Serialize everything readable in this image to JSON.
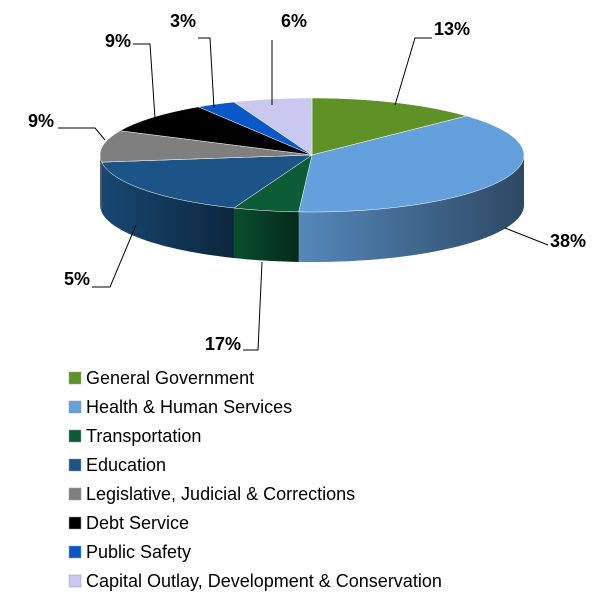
{
  "chart_data": {
    "type": "pie3d",
    "categories": [
      "General Government",
      "Health & Human Services",
      "Transportation",
      "Education",
      "Legislative, Judicial & Corrections",
      "Debt Service",
      "Public Safety",
      "Capital Outlay, Development & Conservation"
    ],
    "values": [
      13,
      38,
      5,
      17,
      9,
      9,
      3,
      6
    ],
    "value_labels": [
      "13%",
      "38%",
      "5%",
      "17%",
      "9%",
      "9%",
      "3%",
      "6%"
    ],
    "colors": [
      "#5e9226",
      "#64a0dc",
      "#0b5c37",
      "#1c5487",
      "#7f7f7f",
      "#000000",
      "#0a58c8",
      "#c8c8f0"
    ],
    "legend": "bottom"
  }
}
